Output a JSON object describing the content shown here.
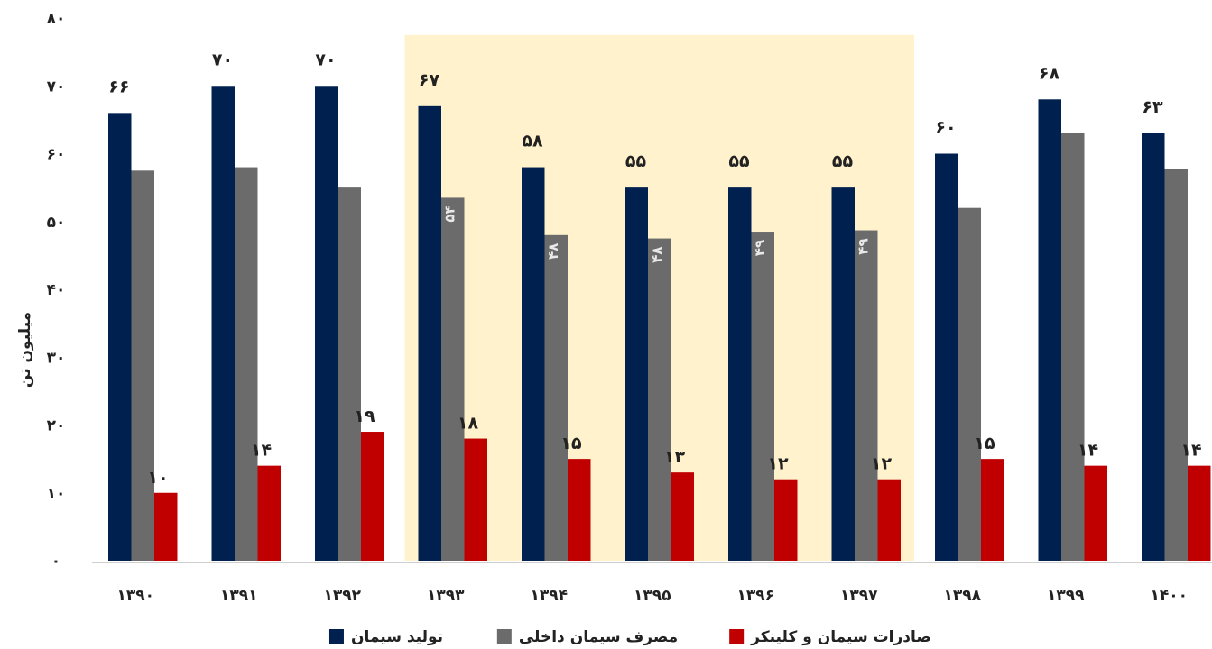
{
  "chart_data": {
    "type": "bar",
    "ylabel": "میلیون تن",
    "ylim": [
      0,
      80
    ],
    "yticks": [
      "۰",
      "۱۰",
      "۲۰",
      "۳۰",
      "۴۰",
      "۵۰",
      "۶۰",
      "۷۰",
      "۸۰"
    ],
    "categories": [
      "۱۳۹۰",
      "۱۳۹۱",
      "۱۳۹۲",
      "۱۳۹۳",
      "۱۳۹۴",
      "۱۳۹۵",
      "۱۳۹۶",
      "۱۳۹۷",
      "۱۳۹۸",
      "۱۳۹۹",
      "۱۴۰۰"
    ],
    "highlight_range": [
      "۱۳۹۳",
      "۱۳۹۷"
    ],
    "highlight_color": "#fff2cc",
    "grid": false,
    "legend_position": "bottom",
    "series": [
      {
        "name": "تولید سیمان",
        "color": "#002050",
        "values": [
          66,
          70,
          70,
          67,
          58,
          55,
          55,
          55,
          60,
          68,
          63
        ],
        "labels": [
          "۶۶",
          "۷۰",
          "۷۰",
          "۶۷",
          "۵۸",
          "۵۵",
          "۵۵",
          "۵۵",
          "۶۰",
          "۶۸",
          "۶۳"
        ]
      },
      {
        "name": "مصرف سیمان داخلی",
        "color": "#6b6b6b",
        "values": [
          57.5,
          58,
          55,
          53.5,
          48,
          47.5,
          48.5,
          48.7,
          52,
          63,
          57.8
        ],
        "labels": [
          "",
          "",
          "",
          "۵۴",
          "۴۸",
          "۴۸",
          "۴۹",
          "۴۹",
          "",
          "",
          ""
        ]
      },
      {
        "name": "صادرات سیمان و کلینکر",
        "color": "#c00000",
        "values": [
          10,
          14,
          19,
          18,
          15,
          13,
          12,
          12,
          15,
          14,
          14
        ],
        "labels": [
          "۱۰",
          "۱۴",
          "۱۹",
          "۱۸",
          "۱۵",
          "۱۳",
          "۱۲",
          "۱۲",
          "۱۵",
          "۱۴",
          "۱۴"
        ]
      }
    ]
  }
}
